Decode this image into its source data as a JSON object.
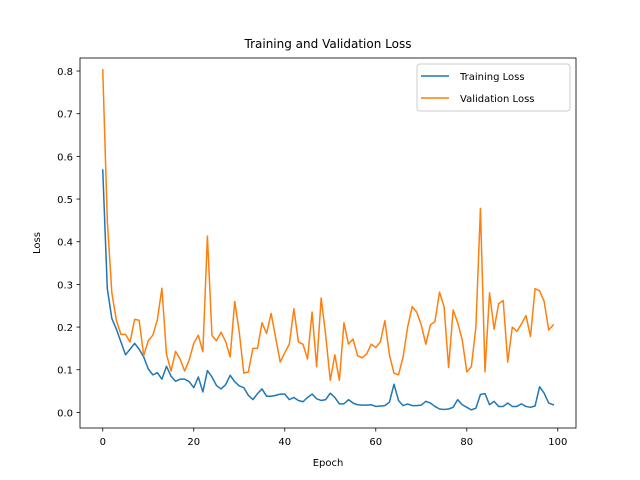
{
  "chart_data": {
    "type": "line",
    "title": "Training and Validation Loss",
    "xlabel": "Epoch",
    "ylabel": "Loss",
    "xlim": [
      -5,
      104
    ],
    "ylim": [
      -0.0365,
      0.8305
    ],
    "xticks": [
      0,
      20,
      40,
      60,
      80,
      100
    ],
    "yticks": [
      0.0,
      0.1,
      0.2,
      0.3,
      0.4,
      0.5,
      0.6,
      0.7,
      0.8
    ],
    "ytick_labels": [
      "0.0",
      "0.1",
      "0.2",
      "0.3",
      "0.4",
      "0.5",
      "0.6",
      "0.7",
      "0.8"
    ],
    "grid": false,
    "legend_position": "top-right",
    "x": [
      0,
      1,
      2,
      3,
      4,
      5,
      6,
      7,
      8,
      9,
      10,
      11,
      12,
      13,
      14,
      15,
      16,
      17,
      18,
      19,
      20,
      21,
      22,
      23,
      24,
      25,
      26,
      27,
      28,
      29,
      30,
      31,
      32,
      33,
      34,
      35,
      36,
      37,
      38,
      39,
      40,
      41,
      42,
      43,
      44,
      45,
      46,
      47,
      48,
      49,
      50,
      51,
      52,
      53,
      54,
      55,
      56,
      57,
      58,
      59,
      60,
      61,
      62,
      63,
      64,
      65,
      66,
      67,
      68,
      69,
      70,
      71,
      72,
      73,
      74,
      75,
      76,
      77,
      78,
      79,
      80,
      81,
      82,
      83,
      84,
      85,
      86,
      87,
      88,
      89,
      90,
      91,
      92,
      93,
      94,
      95,
      96,
      97,
      98,
      99
    ],
    "series": [
      {
        "name": "Training Loss",
        "color": "#1f77b4",
        "values": [
          0.568,
          0.29,
          0.22,
          0.195,
          0.165,
          0.135,
          0.148,
          0.162,
          0.148,
          0.13,
          0.102,
          0.088,
          0.093,
          0.078,
          0.108,
          0.085,
          0.073,
          0.078,
          0.078,
          0.072,
          0.058,
          0.083,
          0.048,
          0.098,
          0.083,
          0.063,
          0.055,
          0.065,
          0.087,
          0.072,
          0.062,
          0.058,
          0.04,
          0.03,
          0.044,
          0.055,
          0.038,
          0.038,
          0.04,
          0.043,
          0.043,
          0.03,
          0.035,
          0.028,
          0.025,
          0.035,
          0.043,
          0.032,
          0.028,
          0.03,
          0.045,
          0.035,
          0.02,
          0.02,
          0.03,
          0.022,
          0.018,
          0.017,
          0.017,
          0.018,
          0.014,
          0.015,
          0.016,
          0.024,
          0.066,
          0.028,
          0.016,
          0.02,
          0.016,
          0.016,
          0.017,
          0.026,
          0.022,
          0.014,
          0.008,
          0.007,
          0.008,
          0.012,
          0.03,
          0.018,
          0.012,
          0.006,
          0.01,
          0.042,
          0.044,
          0.018,
          0.026,
          0.014,
          0.014,
          0.022,
          0.014,
          0.014,
          0.02,
          0.014,
          0.012,
          0.015,
          0.06,
          0.045,
          0.022,
          0.018
        ]
      },
      {
        "name": "Validation Loss",
        "color": "#ff7f0e",
        "values": [
          0.803,
          0.45,
          0.28,
          0.215,
          0.183,
          0.183,
          0.165,
          0.218,
          0.216,
          0.133,
          0.168,
          0.181,
          0.217,
          0.291,
          0.137,
          0.097,
          0.143,
          0.125,
          0.097,
          0.123,
          0.162,
          0.181,
          0.142,
          0.413,
          0.18,
          0.168,
          0.188,
          0.166,
          0.13,
          0.26,
          0.188,
          0.092,
          0.095,
          0.15,
          0.15,
          0.21,
          0.185,
          0.232,
          0.175,
          0.118,
          0.14,
          0.16,
          0.243,
          0.165,
          0.16,
          0.125,
          0.235,
          0.107,
          0.268,
          0.18,
          0.075,
          0.135,
          0.075,
          0.21,
          0.16,
          0.172,
          0.133,
          0.128,
          0.137,
          0.16,
          0.152,
          0.165,
          0.215,
          0.135,
          0.092,
          0.088,
          0.13,
          0.2,
          0.248,
          0.235,
          0.205,
          0.16,
          0.205,
          0.213,
          0.282,
          0.248,
          0.105,
          0.24,
          0.21,
          0.17,
          0.095,
          0.107,
          0.2,
          0.478,
          0.095,
          0.28,
          0.195,
          0.255,
          0.262,
          0.118,
          0.2,
          0.19,
          0.207,
          0.227,
          0.178,
          0.29,
          0.285,
          0.26,
          0.193,
          0.205
        ]
      }
    ]
  }
}
